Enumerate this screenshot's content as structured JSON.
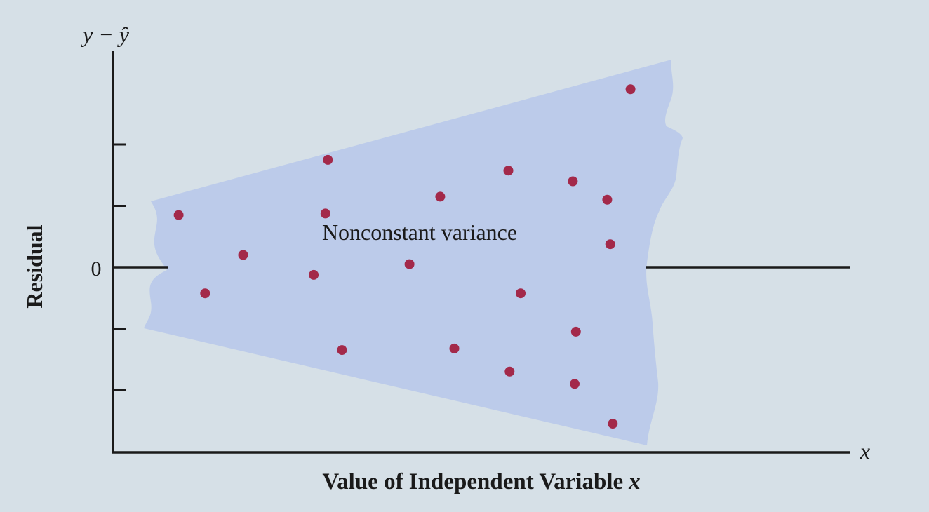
{
  "chart_data": {
    "type": "scatter",
    "title": "",
    "xlabel": "Value of Independent Variable",
    "xlabel_var": "x",
    "ylabel": "Residual",
    "y_axis_symbol": "y − ŷ",
    "x_axis_symbol": "x",
    "y_zero_label": "0",
    "annotation": "Nonconstant variance",
    "axis_ticks_y": [
      -4,
      -2,
      2,
      4
    ],
    "xlim": [
      0,
      12
    ],
    "ylim": [
      -6,
      7
    ],
    "points": [
      {
        "x": 1.07,
        "y": 1.7
      },
      {
        "x": 1.5,
        "y": -0.85
      },
      {
        "x": 2.12,
        "y": 0.4
      },
      {
        "x": 3.27,
        "y": -0.25
      },
      {
        "x": 3.5,
        "y": 3.5
      },
      {
        "x": 3.46,
        "y": 1.75
      },
      {
        "x": 3.73,
        "y": -2.7
      },
      {
        "x": 4.83,
        "y": 0.1
      },
      {
        "x": 5.33,
        "y": 2.3
      },
      {
        "x": 5.56,
        "y": -2.65
      },
      {
        "x": 6.44,
        "y": 3.15
      },
      {
        "x": 6.46,
        "y": -3.4
      },
      {
        "x": 6.64,
        "y": -0.85
      },
      {
        "x": 7.49,
        "y": 2.8
      },
      {
        "x": 7.54,
        "y": -2.1
      },
      {
        "x": 7.52,
        "y": -3.8
      },
      {
        "x": 8.05,
        "y": 2.2
      },
      {
        "x": 8.1,
        "y": 0.75
      },
      {
        "x": 8.14,
        "y": -5.1
      },
      {
        "x": 8.43,
        "y": 5.8
      }
    ],
    "band_color": "#bccbea",
    "point_color": "#a3294a",
    "axis_color": "#1a1a1a",
    "background": "#d6e0e7"
  }
}
